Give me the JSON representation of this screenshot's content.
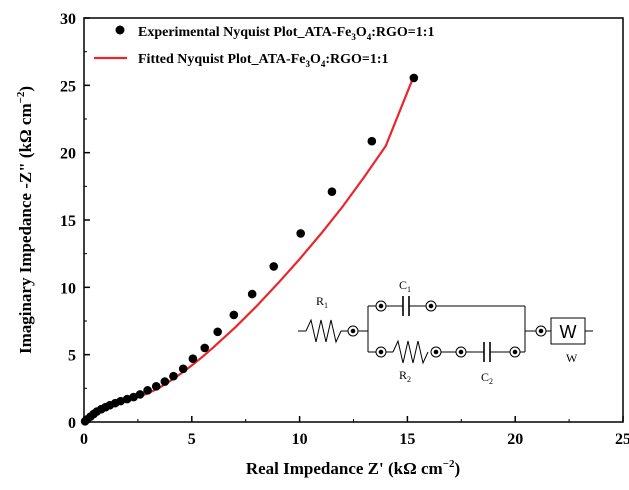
{
  "chart_data": {
    "type": "scatter",
    "xlabel": "Real Impedance Z' (kΩ cm",
    "xlabel_sup": "−2",
    "xlabel_end": ")",
    "ylabel": "Imaginary Impedance -Z\" (kΩ cm",
    "ylabel_sup": "−2",
    "ylabel_end": ")",
    "xlim": [
      0,
      25
    ],
    "ylim": [
      0,
      30
    ],
    "xticks": [
      "0",
      "5",
      "10",
      "15",
      "20",
      "25"
    ],
    "yticks": [
      "0",
      "5",
      "10",
      "15",
      "20",
      "25",
      "30"
    ],
    "legend_placement": "top-left",
    "colors": {
      "experimental": "#000000",
      "fitted": "#e8262b"
    },
    "series": [
      {
        "name": "Experimental Nyquist Plot_ATA-Fe3O4:RGO=1:1",
        "type": "scatter",
        "x": [
          0.05,
          0.15,
          0.3,
          0.45,
          0.6,
          0.8,
          1.0,
          1.2,
          1.45,
          1.7,
          2.0,
          2.3,
          2.6,
          2.95,
          3.35,
          3.75,
          4.15,
          4.6,
          5.05,
          5.6,
          6.2,
          6.95,
          7.8,
          8.8,
          10.05,
          11.5,
          13.35,
          15.3
        ],
        "y": [
          0.05,
          0.2,
          0.4,
          0.6,
          0.78,
          0.95,
          1.1,
          1.25,
          1.4,
          1.55,
          1.7,
          1.85,
          2.05,
          2.35,
          2.65,
          3.0,
          3.4,
          3.95,
          4.7,
          5.5,
          6.7,
          7.95,
          9.5,
          11.55,
          14.0,
          17.1,
          20.85,
          25.55
        ]
      },
      {
        "name": "Fitted Nyquist Plot_ATA-Fe3O4:RGO=1:1",
        "type": "line",
        "x": [
          0.0,
          0.1,
          0.25,
          0.5,
          0.75,
          1.0,
          1.5,
          2.0,
          2.5,
          3.0,
          3.5,
          4.0,
          4.5,
          5.0,
          5.5,
          6.0,
          7.0,
          8.0,
          9.0,
          10.0,
          11.0,
          12.0,
          13.0,
          14.0,
          15.2
        ],
        "y": [
          0.0,
          0.15,
          0.35,
          0.62,
          0.85,
          1.05,
          1.35,
          1.6,
          1.85,
          2.15,
          2.55,
          3.05,
          3.6,
          4.2,
          4.85,
          5.55,
          7.0,
          8.6,
          10.3,
          12.1,
          14.0,
          16.0,
          18.2,
          20.5,
          25.3
        ]
      }
    ],
    "legend": [
      {
        "pre": "Experimental Nyquist Plot_ATA-Fe",
        "sub1": "3",
        "mid": "O",
        "sub2": "4",
        "post": ":RGO=1:1"
      },
      {
        "pre": "Fitted Nyquist Plot_ATA-Fe",
        "sub1": "3",
        "mid": "O",
        "sub2": "4",
        "post": ":RGO=1:1"
      }
    ],
    "circuit": {
      "R1": "R",
      "R1_sub": "1",
      "C1": "C",
      "C1_sub": "1",
      "R2": "R",
      "R2_sub": "2",
      "C2": "C",
      "C2_sub": "2",
      "W_box": "W",
      "W_label": "W"
    }
  }
}
